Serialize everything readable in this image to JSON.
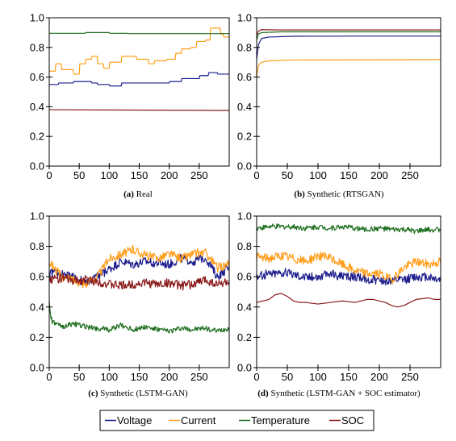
{
  "colors": {
    "Voltage": "#1c1c8c",
    "Current": "#ff9e1b",
    "Temperature": "#1f6e1f",
    "SOC": "#8b1a1a"
  },
  "legend": {
    "placement": "bottom-center",
    "entries": [
      "Voltage",
      "Current",
      "Temperature",
      "SOC"
    ]
  },
  "chart_data": [
    {
      "type": "line",
      "caption_label": "(a)",
      "caption_text": "Real",
      "xlim": [
        0,
        300
      ],
      "ylim": [
        0,
        1.0
      ],
      "xticks": [
        "0",
        "50",
        "100",
        "150",
        "200",
        "250"
      ],
      "yticks": [
        "0.0",
        "0.2",
        "0.4",
        "0.6",
        "0.8",
        "1.0"
      ],
      "series": [
        {
          "name": "Voltage",
          "x": [
            0,
            15,
            16,
            40,
            41,
            70,
            71,
            80,
            81,
            100,
            101,
            120,
            121,
            200,
            201,
            220,
            221,
            250,
            251,
            265,
            266,
            280,
            281,
            300
          ],
          "y": [
            0.55,
            0.55,
            0.56,
            0.56,
            0.57,
            0.57,
            0.56,
            0.56,
            0.55,
            0.55,
            0.54,
            0.54,
            0.56,
            0.56,
            0.57,
            0.57,
            0.59,
            0.59,
            0.61,
            0.61,
            0.63,
            0.63,
            0.62,
            0.62
          ]
        },
        {
          "name": "Current",
          "x": [
            0,
            10,
            11,
            20,
            21,
            40,
            41,
            50,
            51,
            60,
            61,
            70,
            71,
            80,
            81,
            90,
            91,
            100,
            101,
            120,
            121,
            145,
            146,
            165,
            166,
            175,
            176,
            195,
            196,
            210,
            211,
            220,
            221,
            235,
            236,
            245,
            246,
            260,
            261,
            268,
            269,
            285,
            286,
            290,
            291,
            300
          ],
          "y": [
            0.64,
            0.64,
            0.69,
            0.69,
            0.65,
            0.65,
            0.62,
            0.62,
            0.69,
            0.69,
            0.72,
            0.72,
            0.74,
            0.74,
            0.69,
            0.69,
            0.66,
            0.66,
            0.7,
            0.7,
            0.74,
            0.74,
            0.72,
            0.72,
            0.69,
            0.69,
            0.71,
            0.71,
            0.72,
            0.72,
            0.76,
            0.76,
            0.79,
            0.79,
            0.8,
            0.8,
            0.84,
            0.84,
            0.85,
            0.85,
            0.93,
            0.93,
            0.89,
            0.89,
            0.87,
            0.87
          ]
        },
        {
          "name": "Temperature",
          "x": [
            0,
            60,
            61,
            100,
            101,
            130,
            131,
            300
          ],
          "y": [
            0.895,
            0.895,
            0.9,
            0.9,
            0.895,
            0.895,
            0.893,
            0.893
          ]
        },
        {
          "name": "SOC",
          "x": [
            0,
            300
          ],
          "y": [
            0.38,
            0.375
          ]
        }
      ]
    },
    {
      "type": "line",
      "caption_label": "(b)",
      "caption_text": "Synthetic (RTSGAN)",
      "xlim": [
        0,
        300
      ],
      "ylim": [
        0,
        1.0
      ],
      "xticks": [
        "0",
        "50",
        "100",
        "150",
        "200",
        "250"
      ],
      "yticks": [
        "0.0",
        "0.2",
        "0.4",
        "0.6",
        "0.8",
        "1.0"
      ],
      "series": [
        {
          "name": "Voltage",
          "x": [
            0,
            3,
            8,
            20,
            60,
            150,
            300
          ],
          "y": [
            0.72,
            0.82,
            0.86,
            0.87,
            0.875,
            0.876,
            0.876
          ]
        },
        {
          "name": "Current",
          "x": [
            0,
            3,
            8,
            20,
            60,
            150,
            300
          ],
          "y": [
            0.6,
            0.68,
            0.7,
            0.71,
            0.715,
            0.716,
            0.718
          ]
        },
        {
          "name": "Temperature",
          "x": [
            0,
            3,
            8,
            40,
            300
          ],
          "y": [
            0.85,
            0.89,
            0.9,
            0.905,
            0.905
          ]
        },
        {
          "name": "SOC",
          "x": [
            0,
            3,
            8,
            40,
            300
          ],
          "y": [
            0.88,
            0.91,
            0.92,
            0.918,
            0.918
          ]
        }
      ]
    },
    {
      "type": "line",
      "caption_label": "(c)",
      "caption_text": "Synthetic (LSTM-GAN)",
      "xlim": [
        0,
        300
      ],
      "ylim": [
        0,
        1.0
      ],
      "xticks": [
        "0",
        "50",
        "100",
        "150",
        "200",
        "250"
      ],
      "yticks": [
        "0.0",
        "0.2",
        "0.4",
        "0.6",
        "0.8",
        "1.0"
      ],
      "series": [
        {
          "name": "Voltage",
          "x": [
            0,
            20,
            40,
            60,
            80,
            100,
            120,
            140,
            160,
            180,
            200,
            220,
            240,
            260,
            280,
            300
          ],
          "y": [
            0.63,
            0.62,
            0.6,
            0.56,
            0.6,
            0.65,
            0.7,
            0.68,
            0.7,
            0.69,
            0.68,
            0.72,
            0.7,
            0.73,
            0.6,
            0.66
          ]
        },
        {
          "name": "Current",
          "x": [
            0,
            20,
            40,
            60,
            80,
            100,
            120,
            140,
            160,
            180,
            200,
            220,
            240,
            260,
            280,
            300
          ],
          "y": [
            0.7,
            0.6,
            0.58,
            0.55,
            0.6,
            0.72,
            0.75,
            0.78,
            0.74,
            0.72,
            0.75,
            0.72,
            0.75,
            0.76,
            0.66,
            0.68
          ]
        },
        {
          "name": "Temperature",
          "x": [
            0,
            2,
            5,
            20,
            40,
            60,
            80,
            100,
            120,
            140,
            160,
            180,
            200,
            220,
            240,
            260,
            280,
            300
          ],
          "y": [
            0.43,
            0.35,
            0.3,
            0.27,
            0.29,
            0.27,
            0.26,
            0.25,
            0.28,
            0.25,
            0.27,
            0.25,
            0.24,
            0.26,
            0.25,
            0.26,
            0.24,
            0.26
          ]
        },
        {
          "name": "SOC",
          "x": [
            0,
            20,
            40,
            60,
            80,
            100,
            120,
            140,
            160,
            180,
            200,
            220,
            240,
            260,
            280,
            300
          ],
          "y": [
            0.58,
            0.59,
            0.57,
            0.58,
            0.57,
            0.55,
            0.54,
            0.55,
            0.56,
            0.55,
            0.56,
            0.54,
            0.55,
            0.58,
            0.55,
            0.57
          ]
        }
      ]
    },
    {
      "type": "line",
      "caption_label": "(d)",
      "caption_text": "Synthetic (LSTM-GAN + SOC estimator)",
      "xlim": [
        0,
        300
      ],
      "ylim": [
        0,
        1.0
      ],
      "xticks": [
        "0",
        "50",
        "100",
        "150",
        "200",
        "250"
      ],
      "yticks": [
        "0.0",
        "0.2",
        "0.4",
        "0.6",
        "0.8",
        "1.0"
      ],
      "series": [
        {
          "name": "Voltage",
          "x": [
            0,
            20,
            40,
            60,
            80,
            100,
            120,
            140,
            160,
            180,
            200,
            220,
            240,
            260,
            280,
            300
          ],
          "y": [
            0.6,
            0.62,
            0.63,
            0.62,
            0.6,
            0.6,
            0.62,
            0.6,
            0.6,
            0.58,
            0.58,
            0.57,
            0.58,
            0.6,
            0.6,
            0.58
          ]
        },
        {
          "name": "Current",
          "x": [
            0,
            20,
            40,
            60,
            80,
            100,
            120,
            140,
            160,
            180,
            200,
            220,
            240,
            260,
            280,
            300
          ],
          "y": [
            0.73,
            0.72,
            0.74,
            0.72,
            0.7,
            0.74,
            0.72,
            0.68,
            0.64,
            0.62,
            0.62,
            0.58,
            0.66,
            0.7,
            0.68,
            0.7
          ]
        },
        {
          "name": "Temperature",
          "x": [
            0,
            20,
            40,
            60,
            80,
            100,
            120,
            140,
            160,
            180,
            200,
            220,
            240,
            260,
            280,
            300
          ],
          "y": [
            0.92,
            0.93,
            0.93,
            0.93,
            0.92,
            0.93,
            0.92,
            0.93,
            0.92,
            0.91,
            0.92,
            0.91,
            0.91,
            0.9,
            0.91,
            0.91
          ]
        },
        {
          "name": "SOC",
          "x": [
            0,
            10,
            20,
            30,
            40,
            50,
            60,
            70,
            80,
            100,
            120,
            140,
            160,
            180,
            190,
            210,
            220,
            230,
            240,
            260,
            280,
            290,
            300
          ],
          "y": [
            0.43,
            0.44,
            0.45,
            0.48,
            0.49,
            0.47,
            0.44,
            0.43,
            0.43,
            0.42,
            0.43,
            0.44,
            0.43,
            0.45,
            0.45,
            0.43,
            0.41,
            0.4,
            0.41,
            0.45,
            0.46,
            0.45,
            0.45
          ]
        }
      ]
    }
  ]
}
